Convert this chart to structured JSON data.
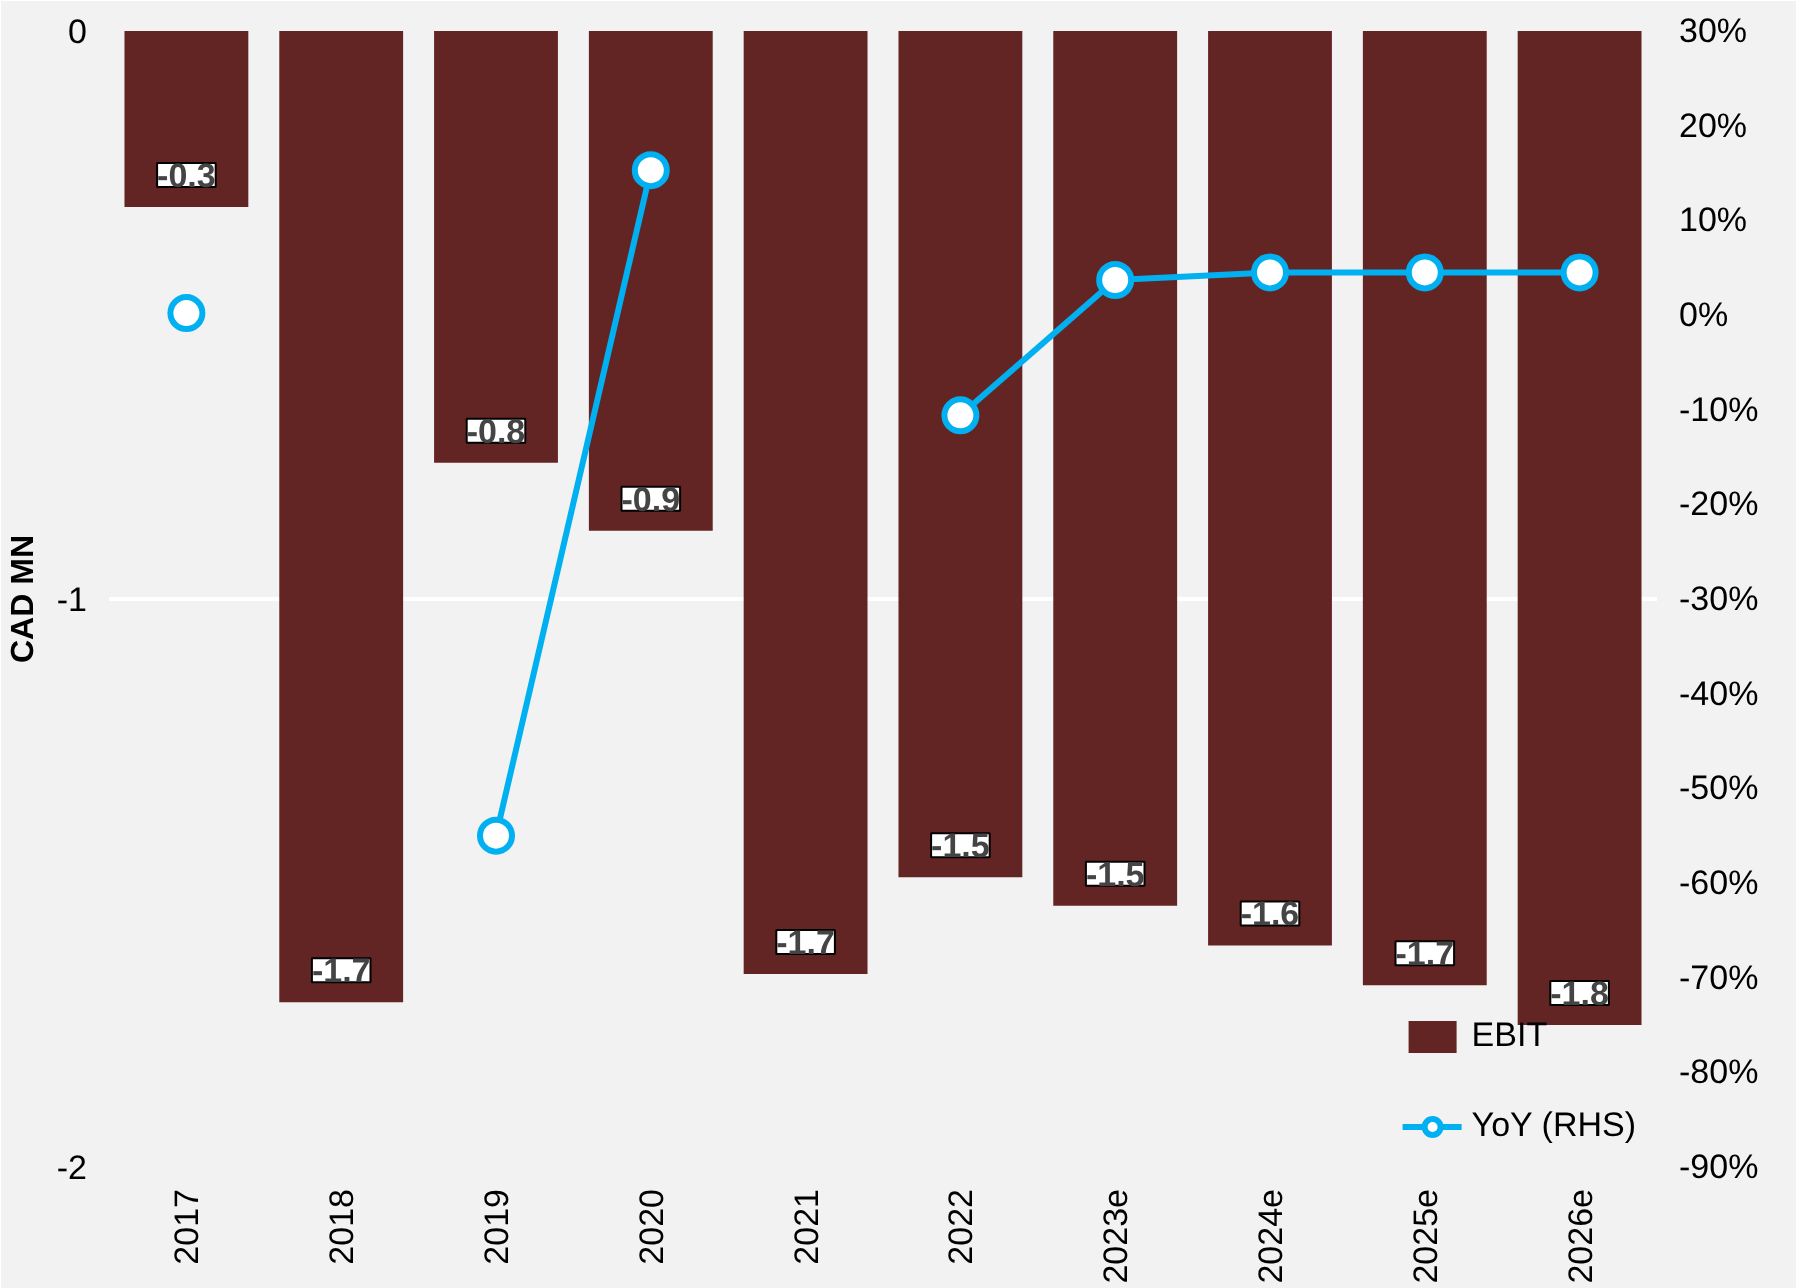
{
  "chart_data": {
    "type": "bar",
    "ylabel": "CAD MN",
    "categories": [
      "2017",
      "2018",
      "2019",
      "2020",
      "2021",
      "2022",
      "2023e",
      "2024e",
      "2025e",
      "2026e"
    ],
    "series": [
      {
        "name": "EBIT",
        "color": "#632523",
        "values": [
          -0.31,
          -1.71,
          -0.76,
          -0.88,
          -1.66,
          -1.49,
          -1.54,
          -1.61,
          -1.68,
          -1.75
        ],
        "value_labels": [
          "-0.3",
          "-1.7",
          "-0.8",
          "-0.9",
          "-1.7",
          "-1.5",
          "-1.5",
          "-1.6",
          "-1.7",
          "-1.8"
        ]
      },
      {
        "name": "YoY (RHS)",
        "type": "line",
        "axis": "y2",
        "color": "#00b0f0",
        "marker": "circle",
        "values": [
          0.2,
          null,
          -55,
          15.3,
          null,
          -10.6,
          3.7,
          4.5,
          4.5,
          4.5
        ]
      }
    ],
    "ylim": [
      -2,
      0
    ],
    "yticks": [
      0,
      -1,
      -2
    ],
    "y2lim": [
      -90,
      30
    ],
    "y2ticks": [
      {
        "value": 30,
        "label": "30%"
      },
      {
        "value": 20,
        "label": "20%"
      },
      {
        "value": 10,
        "label": "10%"
      },
      {
        "value": 0,
        "label": "0%"
      },
      {
        "value": -10,
        "label": "-10%"
      },
      {
        "value": -20,
        "label": "-20%"
      },
      {
        "value": -30,
        "label": "-30%"
      },
      {
        "value": -40,
        "label": "-40%"
      },
      {
        "value": -50,
        "label": "-50%"
      },
      {
        "value": -60,
        "label": "-60%"
      },
      {
        "value": -70,
        "label": "-70%"
      },
      {
        "value": -80,
        "label": "-80%"
      },
      {
        "value": -90,
        "label": "-90%"
      }
    ],
    "grid": "y",
    "legend": "bottom right"
  }
}
